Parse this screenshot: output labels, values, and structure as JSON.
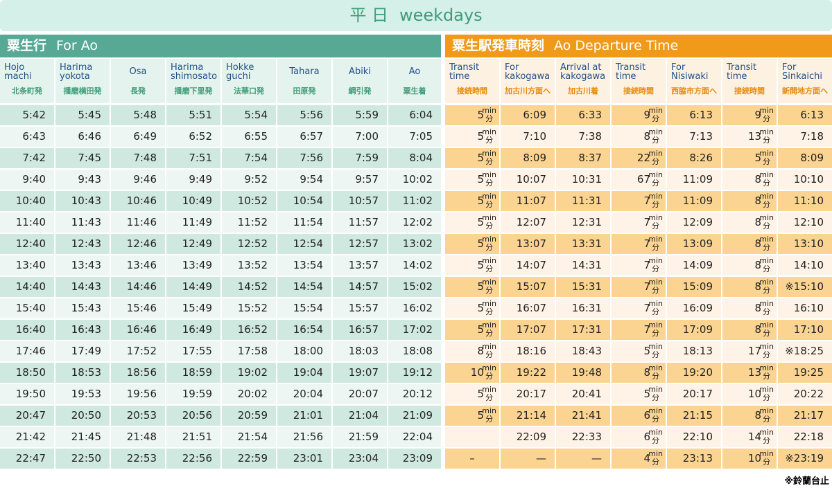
{
  "title": {
    "ja": "平 日",
    "en": "weekdays"
  },
  "sections": {
    "left": {
      "ja": "粟生行",
      "en": "For Ao"
    },
    "right": {
      "ja": "粟生駅発車時刻",
      "en": "Ao Departure Time"
    }
  },
  "transit_unit": {
    "en": "min",
    "ja": "分"
  },
  "headers": [
    {
      "en": [
        "Hojo",
        "machi"
      ],
      "ja": "北条町発"
    },
    {
      "en": [
        "Harima",
        "yokota"
      ],
      "ja": "播磨横田発"
    },
    {
      "en": [
        "Osa"
      ],
      "ja": "長発"
    },
    {
      "en": [
        "Harima",
        "shimosato"
      ],
      "ja": "播磨下里発"
    },
    {
      "en": [
        "Hokke",
        "guchi"
      ],
      "ja": "法華口発"
    },
    {
      "en": [
        "Tahara"
      ],
      "ja": "田原発"
    },
    {
      "en": [
        "Abiki"
      ],
      "ja": "網引発"
    },
    {
      "en": [
        "Ao"
      ],
      "ja": "粟生着"
    },
    {
      "en": [
        "Transit",
        "time"
      ],
      "ja": "接続時間"
    },
    {
      "en": [
        "For",
        "kakogawa"
      ],
      "ja": "加古川方面へ"
    },
    {
      "en": [
        "Arrival at",
        "kakogawa"
      ],
      "ja": "加古川着"
    },
    {
      "en": [
        "Transit",
        "time"
      ],
      "ja": "接続時間"
    },
    {
      "en": [
        "For",
        "Nisiwaki"
      ],
      "ja": "西脇市方面へ"
    },
    {
      "en": [
        "Transit",
        "time"
      ],
      "ja": "接続時間"
    },
    {
      "en": [
        "For",
        "Sinkaichi"
      ],
      "ja": "新開地方面へ"
    }
  ],
  "rows": [
    [
      "5:42",
      "5:45",
      "5:48",
      "5:51",
      "5:54",
      "5:56",
      "5:59",
      "6:04",
      "5",
      "6:09",
      "6:33",
      "9",
      "6:13",
      "9",
      "6:13"
    ],
    [
      "6:43",
      "6:46",
      "6:49",
      "6:52",
      "6:55",
      "6:57",
      "7:00",
      "7:05",
      "5",
      "7:10",
      "7:38",
      "8",
      "7:13",
      "13",
      "7:18"
    ],
    [
      "7:42",
      "7:45",
      "7:48",
      "7:51",
      "7:54",
      "7:56",
      "7:59",
      "8:04",
      "5",
      "8:09",
      "8:37",
      "22",
      "8:26",
      "5",
      "8:09"
    ],
    [
      "9:40",
      "9:43",
      "9:46",
      "9:49",
      "9:52",
      "9:54",
      "9:57",
      "10:02",
      "5",
      "10:07",
      "10:31",
      "67",
      "11:09",
      "8",
      "10:10"
    ],
    [
      "10:40",
      "10:43",
      "10:46",
      "10:49",
      "10:52",
      "10:54",
      "10:57",
      "11:02",
      "5",
      "11:07",
      "11:31",
      "7",
      "11:09",
      "8",
      "11:10"
    ],
    [
      "11:40",
      "11:43",
      "11:46",
      "11:49",
      "11:52",
      "11:54",
      "11:57",
      "12:02",
      "5",
      "12:07",
      "12:31",
      "7",
      "12:09",
      "8",
      "12:10"
    ],
    [
      "12:40",
      "12:43",
      "12:46",
      "12:49",
      "12:52",
      "12:54",
      "12:57",
      "13:02",
      "5",
      "13:07",
      "13:31",
      "7",
      "13:09",
      "8",
      "13:10"
    ],
    [
      "13:40",
      "13:43",
      "13:46",
      "13:49",
      "13:52",
      "13:54",
      "13:57",
      "14:02",
      "5",
      "14:07",
      "14:31",
      "7",
      "14:09",
      "8",
      "14:10"
    ],
    [
      "14:40",
      "14:43",
      "14:46",
      "14:49",
      "14:52",
      "14:54",
      "14:57",
      "15:02",
      "5",
      "15:07",
      "15:31",
      "7",
      "15:09",
      "8",
      "※15:10"
    ],
    [
      "15:40",
      "15:43",
      "15:46",
      "15:49",
      "15:52",
      "15:54",
      "15:57",
      "16:02",
      "5",
      "16:07",
      "16:31",
      "7",
      "16:09",
      "8",
      "16:10"
    ],
    [
      "16:40",
      "16:43",
      "16:46",
      "16:49",
      "16:52",
      "16:54",
      "16:57",
      "17:02",
      "5",
      "17:07",
      "17:31",
      "7",
      "17:09",
      "8",
      "17:10"
    ],
    [
      "17:46",
      "17:49",
      "17:52",
      "17:55",
      "17:58",
      "18:00",
      "18:03",
      "18:08",
      "8",
      "18:16",
      "18:43",
      "5",
      "18:13",
      "17",
      "※18:25"
    ],
    [
      "18:50",
      "18:53",
      "18:56",
      "18:59",
      "19:02",
      "19:04",
      "19:07",
      "19:12",
      "10",
      "19:22",
      "19:48",
      "8",
      "19:20",
      "13",
      "19:25"
    ],
    [
      "19:50",
      "19:53",
      "19:56",
      "19:59",
      "20:02",
      "20:04",
      "20:07",
      "20:12",
      "5",
      "20:17",
      "20:41",
      "5",
      "20:17",
      "10",
      "20:22"
    ],
    [
      "20:47",
      "20:50",
      "20:53",
      "20:56",
      "20:59",
      "21:01",
      "21:04",
      "21:09",
      "5",
      "21:14",
      "21:41",
      "6",
      "21:15",
      "8",
      "21:17"
    ],
    [
      "21:42",
      "21:45",
      "21:48",
      "21:51",
      "21:54",
      "21:56",
      "21:59",
      "22:04",
      null,
      "22:09",
      "22:33",
      "6",
      "22:10",
      "14",
      "22:18"
    ],
    [
      "22:47",
      "22:50",
      "22:53",
      "22:56",
      "22:59",
      "23:01",
      "23:04",
      "23:09",
      "–",
      "—",
      "—",
      "4",
      "23:13",
      "10",
      "※23:19"
    ]
  ],
  "footnote": "※鈴蘭台止"
}
